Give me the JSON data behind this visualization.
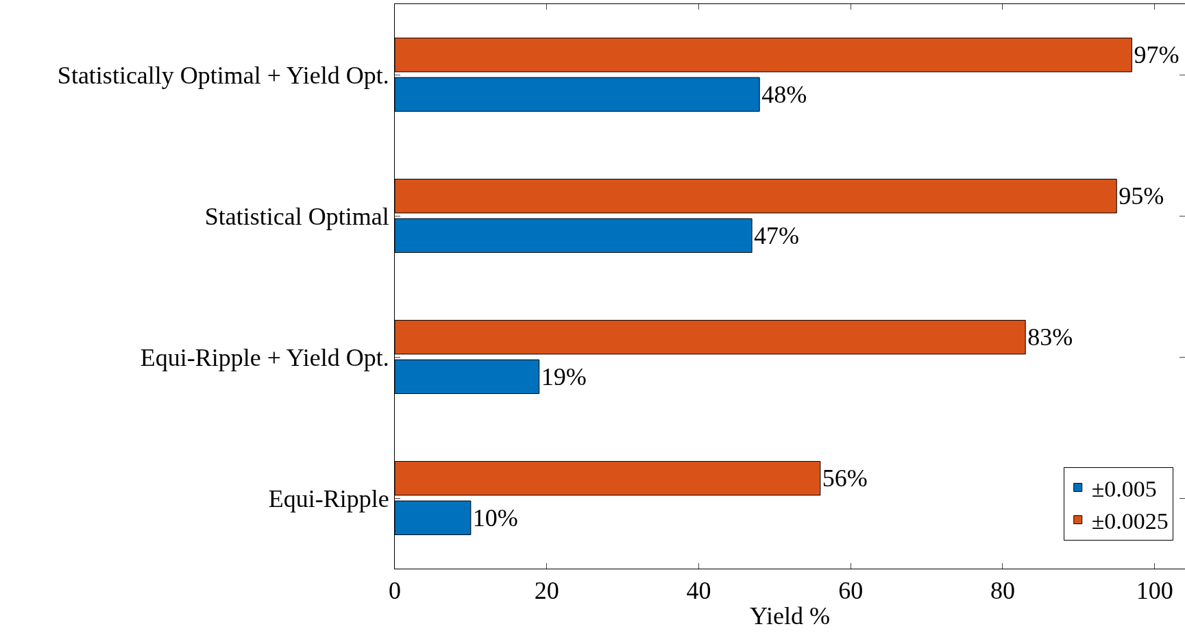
{
  "chart_data": {
    "type": "bar",
    "orientation": "horizontal",
    "xlabel": "Yield %",
    "categories": [
      "Statistically Optimal + Yield Opt.",
      "Statistical Optimal",
      "Equi-Ripple + Yield Opt.",
      "Equi-Ripple"
    ],
    "series": [
      {
        "name": "±0.005",
        "color": "#0072bd",
        "values": [
          48,
          47,
          19,
          10
        ],
        "value_labels": [
          "48%",
          "47%",
          "19%",
          "10%"
        ]
      },
      {
        "name": "±0.0025",
        "color": "#d95319",
        "values": [
          97,
          95,
          83,
          56
        ],
        "value_labels": [
          "97%",
          "95%",
          "83%",
          "56%"
        ]
      }
    ],
    "xlim": [
      0,
      104
    ],
    "xticks": [
      0,
      20,
      40,
      60,
      80,
      100
    ],
    "grid": false,
    "legend": "bottom right"
  }
}
